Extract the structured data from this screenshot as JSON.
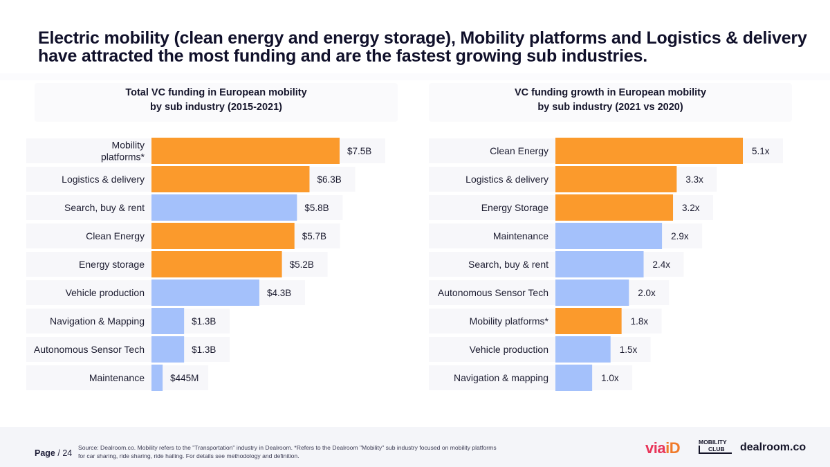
{
  "headline": "Electric mobility (clean energy and energy storage), Mobility platforms and Logistics & delivery have attracted the most funding and are the fastest growing sub industries.",
  "colors": {
    "highlight": "#FB9A2C",
    "other": "#A4C1FB",
    "label_bg": "#F7F7FA"
  },
  "chart_data": [
    {
      "type": "bar",
      "orientation": "horizontal",
      "title": [
        "Total VC funding in European mobility",
        "by sub industry (2015-2021)"
      ],
      "unit": "$B",
      "categories": [
        [
          "Mobility",
          "platforms*"
        ],
        [
          "Logistics & delivery"
        ],
        [
          "Search, buy & rent"
        ],
        [
          "Clean Energy"
        ],
        [
          "Energy storage"
        ],
        [
          "Vehicle production"
        ],
        [
          "Navigation & Mapping"
        ],
        [
          "Autonomous Sensor Tech"
        ],
        [
          "Maintenance"
        ]
      ],
      "values": [
        7.5,
        6.3,
        5.8,
        5.7,
        5.2,
        4.3,
        1.3,
        1.3,
        0.445
      ],
      "value_labels": [
        "$7.5B",
        "$6.3B",
        "$5.8B",
        "$5.7B",
        "$5.2B",
        "$4.3B",
        "$1.3B",
        "$1.3B",
        "$445M"
      ],
      "highlighted": [
        true,
        true,
        false,
        true,
        true,
        false,
        false,
        false,
        false
      ],
      "xlim": [
        0,
        7.5
      ]
    },
    {
      "type": "bar",
      "orientation": "horizontal",
      "title": [
        "VC funding growth in European mobility",
        "by sub industry (2021 vs 2020)"
      ],
      "unit": "x",
      "categories": [
        [
          "Clean Energy"
        ],
        [
          "Logistics & delivery"
        ],
        [
          "Energy Storage"
        ],
        [
          "Maintenance"
        ],
        [
          "Search, buy & rent"
        ],
        [
          "Autonomous Sensor Tech"
        ],
        [
          "Mobility platforms*"
        ],
        [
          "Vehicle production"
        ],
        [
          "Navigation & mapping"
        ]
      ],
      "values": [
        5.1,
        3.3,
        3.2,
        2.9,
        2.4,
        2.0,
        1.8,
        1.5,
        1.0
      ],
      "value_labels": [
        "5.1x",
        "3.3x",
        "3.2x",
        "2.9x",
        "2.4x",
        "2.0x",
        "1.8x",
        "1.5x",
        "1.0x"
      ],
      "highlighted": [
        true,
        true,
        true,
        false,
        false,
        false,
        true,
        false,
        false
      ],
      "xlim": [
        0,
        5.1
      ]
    }
  ],
  "footer": {
    "page_label": "Page",
    "page_number": "/ 24",
    "source": "Source: Dealroom.co.  Mobility refers to the \"Transportation\" industry in Dealroom. *Refers to the Dealroom \"Mobility\" sub industry focused on mobility platforms for car sharing, ride sharing, ride hailing. For details see methodology and definition.",
    "logo_viaid": "via",
    "logo_viaid_suffix": "iD",
    "logo_mobility_1": "MOBILITY",
    "logo_mobility_2": "CLUB",
    "logo_dealroom": "dealroom.co"
  }
}
